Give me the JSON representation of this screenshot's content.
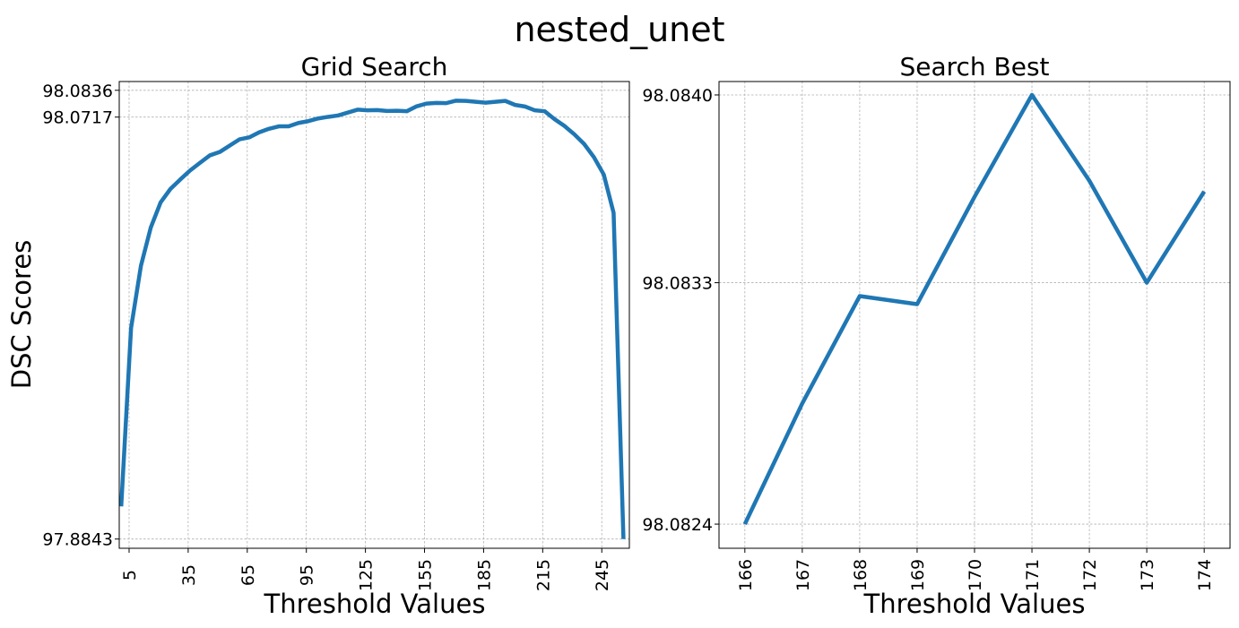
{
  "figure": {
    "title": "nested_unet"
  },
  "chart_data": [
    {
      "type": "line",
      "title": "Grid Search",
      "xlabel": "Threshold Values",
      "ylabel": "DSC Scores",
      "xlim": [
        0,
        259
      ],
      "ylim": [
        97.8802,
        98.0875
      ],
      "xticks": [
        5,
        35,
        65,
        95,
        125,
        155,
        185,
        215,
        245
      ],
      "yticks": [
        97.8843,
        98.0717,
        98.0836
      ],
      "ytick_labels": [
        "97.8843",
        "98.0717",
        "98.0836"
      ],
      "grid": true,
      "color": "#1f77b4",
      "x": [
        1,
        6,
        11,
        16,
        21,
        26,
        31,
        36,
        41,
        46,
        51,
        56,
        61,
        66,
        71,
        76,
        81,
        86,
        91,
        96,
        101,
        106,
        111,
        116,
        121,
        126,
        131,
        136,
        141,
        146,
        151,
        156,
        161,
        166,
        171,
        176,
        181,
        186,
        191,
        196,
        201,
        206,
        211,
        216,
        221,
        226,
        231,
        236,
        241,
        246,
        251,
        256
      ],
      "y": [
        97.8988,
        97.978,
        98.0056,
        98.0226,
        98.0338,
        98.0398,
        98.044,
        98.048,
        98.0514,
        98.0547,
        98.0562,
        98.059,
        98.0618,
        98.0627,
        98.0649,
        98.0665,
        98.0676,
        98.0676,
        98.0691,
        98.0699,
        98.0711,
        98.0718,
        98.0724,
        98.0737,
        98.075,
        98.0747,
        98.0748,
        98.0744,
        98.0745,
        98.0743,
        98.0765,
        98.0777,
        98.078,
        98.0779,
        98.079,
        98.0789,
        98.0785,
        98.0781,
        98.0785,
        98.0789,
        98.0771,
        98.0764,
        98.0747,
        98.0743,
        98.0708,
        98.0678,
        98.0641,
        98.0598,
        98.0539,
        98.0462,
        98.0292,
        97.8843
      ]
    },
    {
      "type": "line",
      "title": "Search Best",
      "xlabel": "Threshold Values",
      "ylabel": "",
      "xlim": [
        165.55,
        174.45
      ],
      "ylim": [
        98.08231,
        98.08405
      ],
      "categories": [
        "166",
        "167",
        "168",
        "169",
        "170",
        "171",
        "172",
        "173",
        "174"
      ],
      "x": [
        166,
        167,
        168,
        169,
        170,
        171,
        172,
        173,
        174
      ],
      "y": [
        98.0824,
        98.08285,
        98.08325,
        98.08322,
        98.08362,
        98.084,
        98.08368,
        98.0833,
        98.08364
      ],
      "yticks": [
        98.0824,
        98.0833,
        98.084
      ],
      "ytick_labels": [
        "98.0824",
        "98.0833",
        "98.0840"
      ],
      "grid": true,
      "color": "#1f77b4"
    }
  ]
}
